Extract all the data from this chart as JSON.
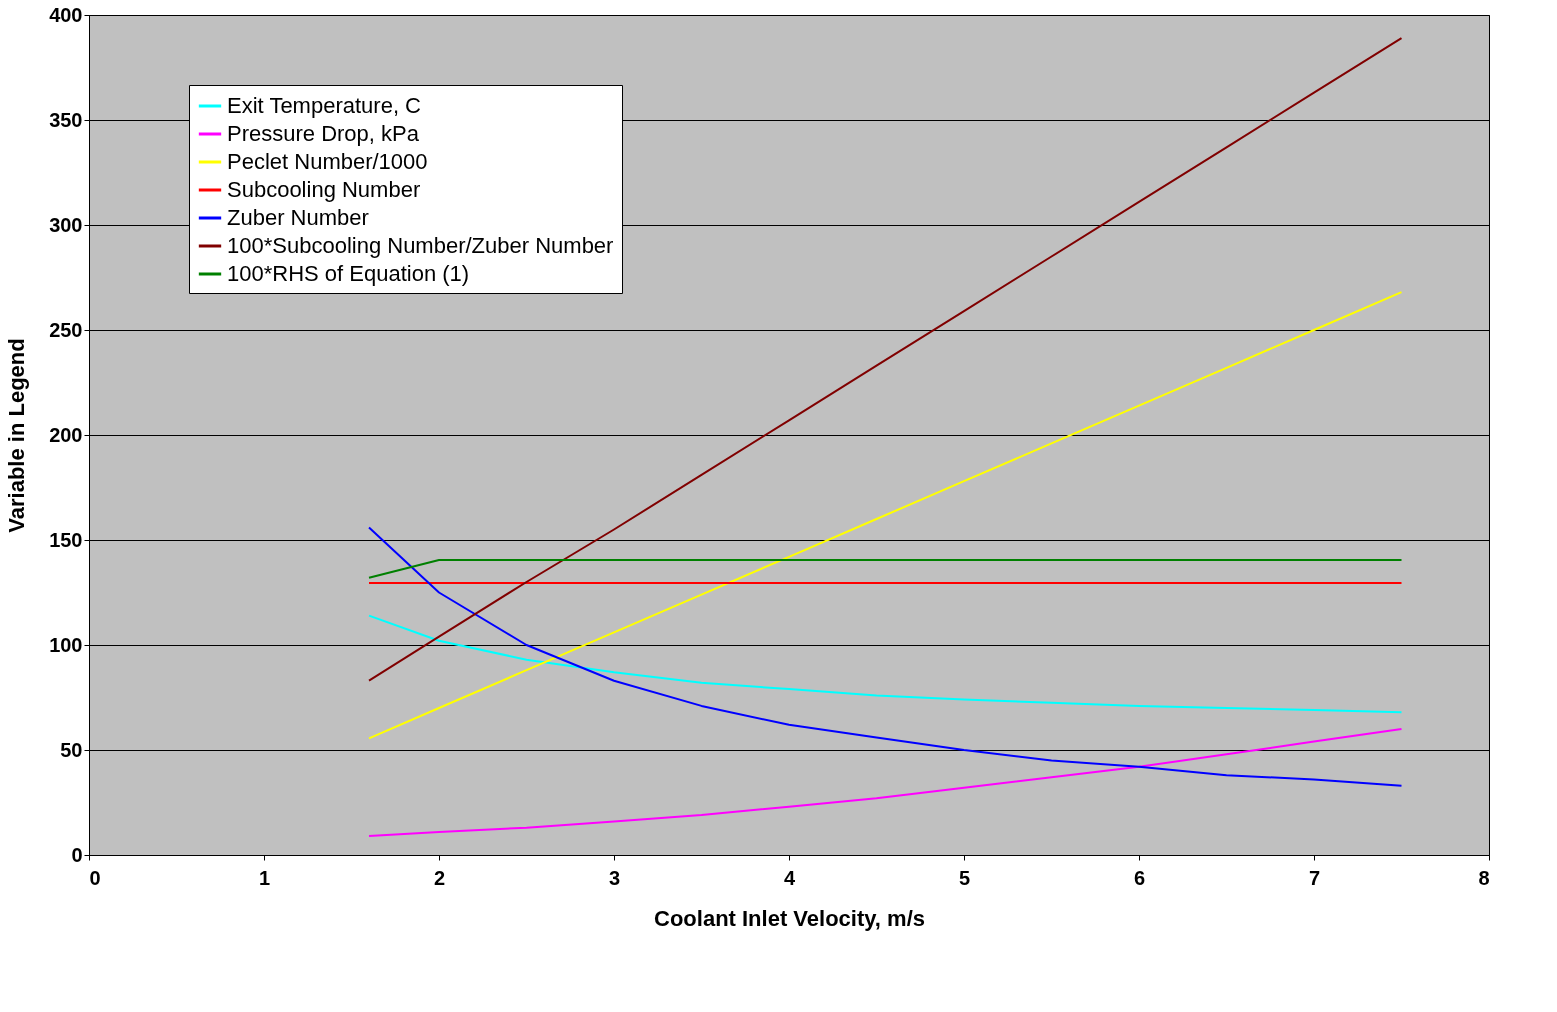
{
  "chart_data": {
    "type": "line",
    "xlabel": "Coolant Inlet Velocity, m/s",
    "ylabel": "Variable in Legend",
    "x": [
      1.6,
      2,
      2.5,
      3,
      3.5,
      4,
      4.5,
      5,
      5.5,
      6,
      6.5,
      7,
      7.5
    ],
    "series": [
      {
        "name": "Exit Temperature, C",
        "color": "#00ffff",
        "values": [
          114,
          102,
          93,
          87,
          82,
          79,
          76,
          74,
          72.5,
          71,
          70,
          69,
          68
        ]
      },
      {
        "name": "Pressure Drop, kPa",
        "color": "#ff00ff",
        "values": [
          9,
          11,
          13,
          16,
          19,
          23,
          27,
          32,
          37,
          42,
          48,
          54,
          60
        ]
      },
      {
        "name": "Peclet Number/1000",
        "color": "#ffff00",
        "values": [
          55.5,
          70,
          88,
          106,
          124,
          142,
          160,
          178,
          196,
          214,
          232,
          250,
          268
        ]
      },
      {
        "name": "Subcooling Number",
        "color": "#ff0000",
        "x": [
          1.6,
          7.5
        ],
        "values": [
          129.5,
          129.5
        ]
      },
      {
        "name": "Zuber Number",
        "color": "#0000ff",
        "values": [
          156,
          125,
          100,
          83,
          71,
          62,
          56,
          50,
          45,
          42,
          38,
          36,
          33
        ]
      },
      {
        "name": "100*Subcooling Number/Zuber Number",
        "color": "#800000",
        "values": [
          83,
          104,
          130,
          155,
          181,
          207,
          233,
          259,
          285,
          311,
          337,
          363,
          389
        ]
      },
      {
        "name": "100*RHS of Equation (1)",
        "color": "#008000",
        "x": [
          1.6,
          2,
          7.5
        ],
        "values": [
          132,
          140.5,
          140.5
        ]
      }
    ],
    "xlim": [
      0,
      8
    ],
    "xticks": [
      0,
      1,
      2,
      3,
      4,
      5,
      6,
      7,
      8
    ],
    "ylim": [
      0,
      400
    ],
    "yticks": [
      0,
      50,
      100,
      150,
      200,
      250,
      300,
      350,
      400
    ],
    "grid": "y",
    "legend": "top left",
    "marker": "none",
    "line_style": "solid"
  }
}
